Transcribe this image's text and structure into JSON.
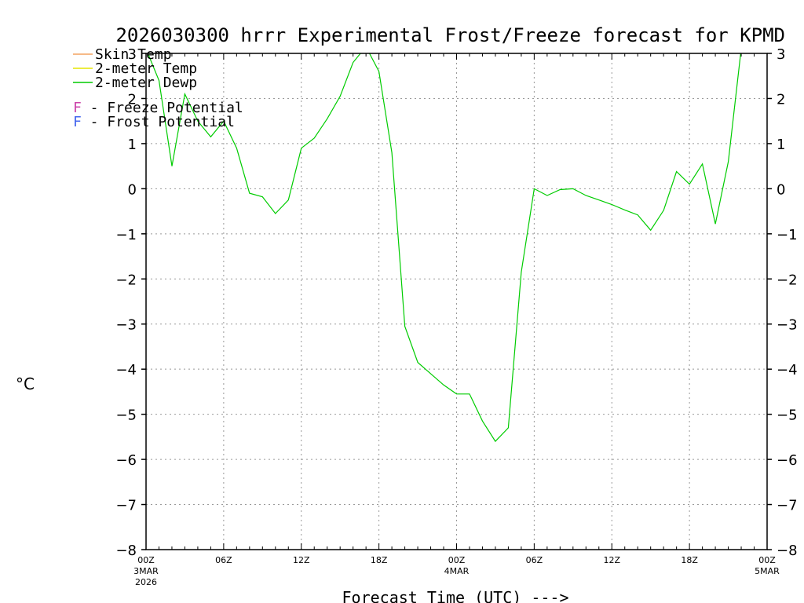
{
  "chart_data": {
    "type": "line",
    "title": "2026030300 hrrr Experimental Frost/Freeze forecast for KPMD",
    "xlabel": "Forecast Time (UTC) --->",
    "ylabel": "°C",
    "ylim": [
      -8,
      3
    ],
    "y_ticks": [
      3,
      2,
      1,
      0,
      -1,
      -2,
      -3,
      -4,
      -5,
      -6,
      -7,
      -8
    ],
    "xlim": [
      0,
      48
    ],
    "x_ticks": [
      {
        "hour": 0,
        "label": "00Z",
        "sub1": "3MAR",
        "sub2": "2026"
      },
      {
        "hour": 6,
        "label": "06Z",
        "sub1": "",
        "sub2": ""
      },
      {
        "hour": 12,
        "label": "12Z",
        "sub1": "",
        "sub2": ""
      },
      {
        "hour": 18,
        "label": "18Z",
        "sub1": "",
        "sub2": ""
      },
      {
        "hour": 24,
        "label": "00Z",
        "sub1": "4MAR",
        "sub2": ""
      },
      {
        "hour": 30,
        "label": "06Z",
        "sub1": "",
        "sub2": ""
      },
      {
        "hour": 36,
        "label": "12Z",
        "sub1": "",
        "sub2": ""
      },
      {
        "hour": 42,
        "label": "18Z",
        "sub1": "",
        "sub2": ""
      },
      {
        "hour": 48,
        "label": "00Z",
        "sub1": "5MAR",
        "sub2": ""
      }
    ],
    "grid": true,
    "legend": {
      "placement": "top-left",
      "series_entries": [
        {
          "name": "Skin Temp",
          "color": "#f4a460"
        },
        {
          "name": "2-meter Temp",
          "color": "#e6e600"
        },
        {
          "name": "2-meter Dewp",
          "color": "#00cc00"
        }
      ],
      "potential_entries": [
        {
          "letter": "F",
          "text": " - Freeze Potential",
          "color": "#cc44aa"
        },
        {
          "letter": "F",
          "text": " - Frost Potential",
          "color": "#4466ee"
        }
      ]
    },
    "series": [
      {
        "name": "2-meter Dewp",
        "color": "#00cc00",
        "x": [
          0,
          1,
          2,
          3,
          4,
          5,
          6,
          7,
          8,
          9,
          10,
          11,
          12,
          13,
          14,
          15,
          16,
          17,
          18,
          19,
          20,
          21,
          22,
          23,
          24,
          25,
          26,
          27,
          28,
          29,
          30,
          31,
          32,
          33,
          34,
          35,
          36,
          37,
          38,
          39,
          40,
          41,
          42,
          43,
          44,
          45,
          46,
          47
        ],
        "values": [
          3.1,
          2.4,
          0.5,
          2.1,
          1.5,
          1.15,
          1.5,
          0.9,
          -0.1,
          -0.18,
          -0.55,
          -0.25,
          0.9,
          1.12,
          1.55,
          2.05,
          2.8,
          3.15,
          2.6,
          0.8,
          -3.05,
          -3.85,
          -4.1,
          -4.35,
          -4.55,
          -4.55,
          -5.15,
          -5.6,
          -5.3,
          -1.85,
          0,
          -0.15,
          -0.02,
          0,
          -0.15,
          -0.25,
          -0.35,
          -0.47,
          -0.58,
          -0.92,
          -0.48,
          0.38,
          0.1,
          0.55,
          -0.78,
          0.6,
          3.1,
          3.5
        ]
      }
    ]
  }
}
